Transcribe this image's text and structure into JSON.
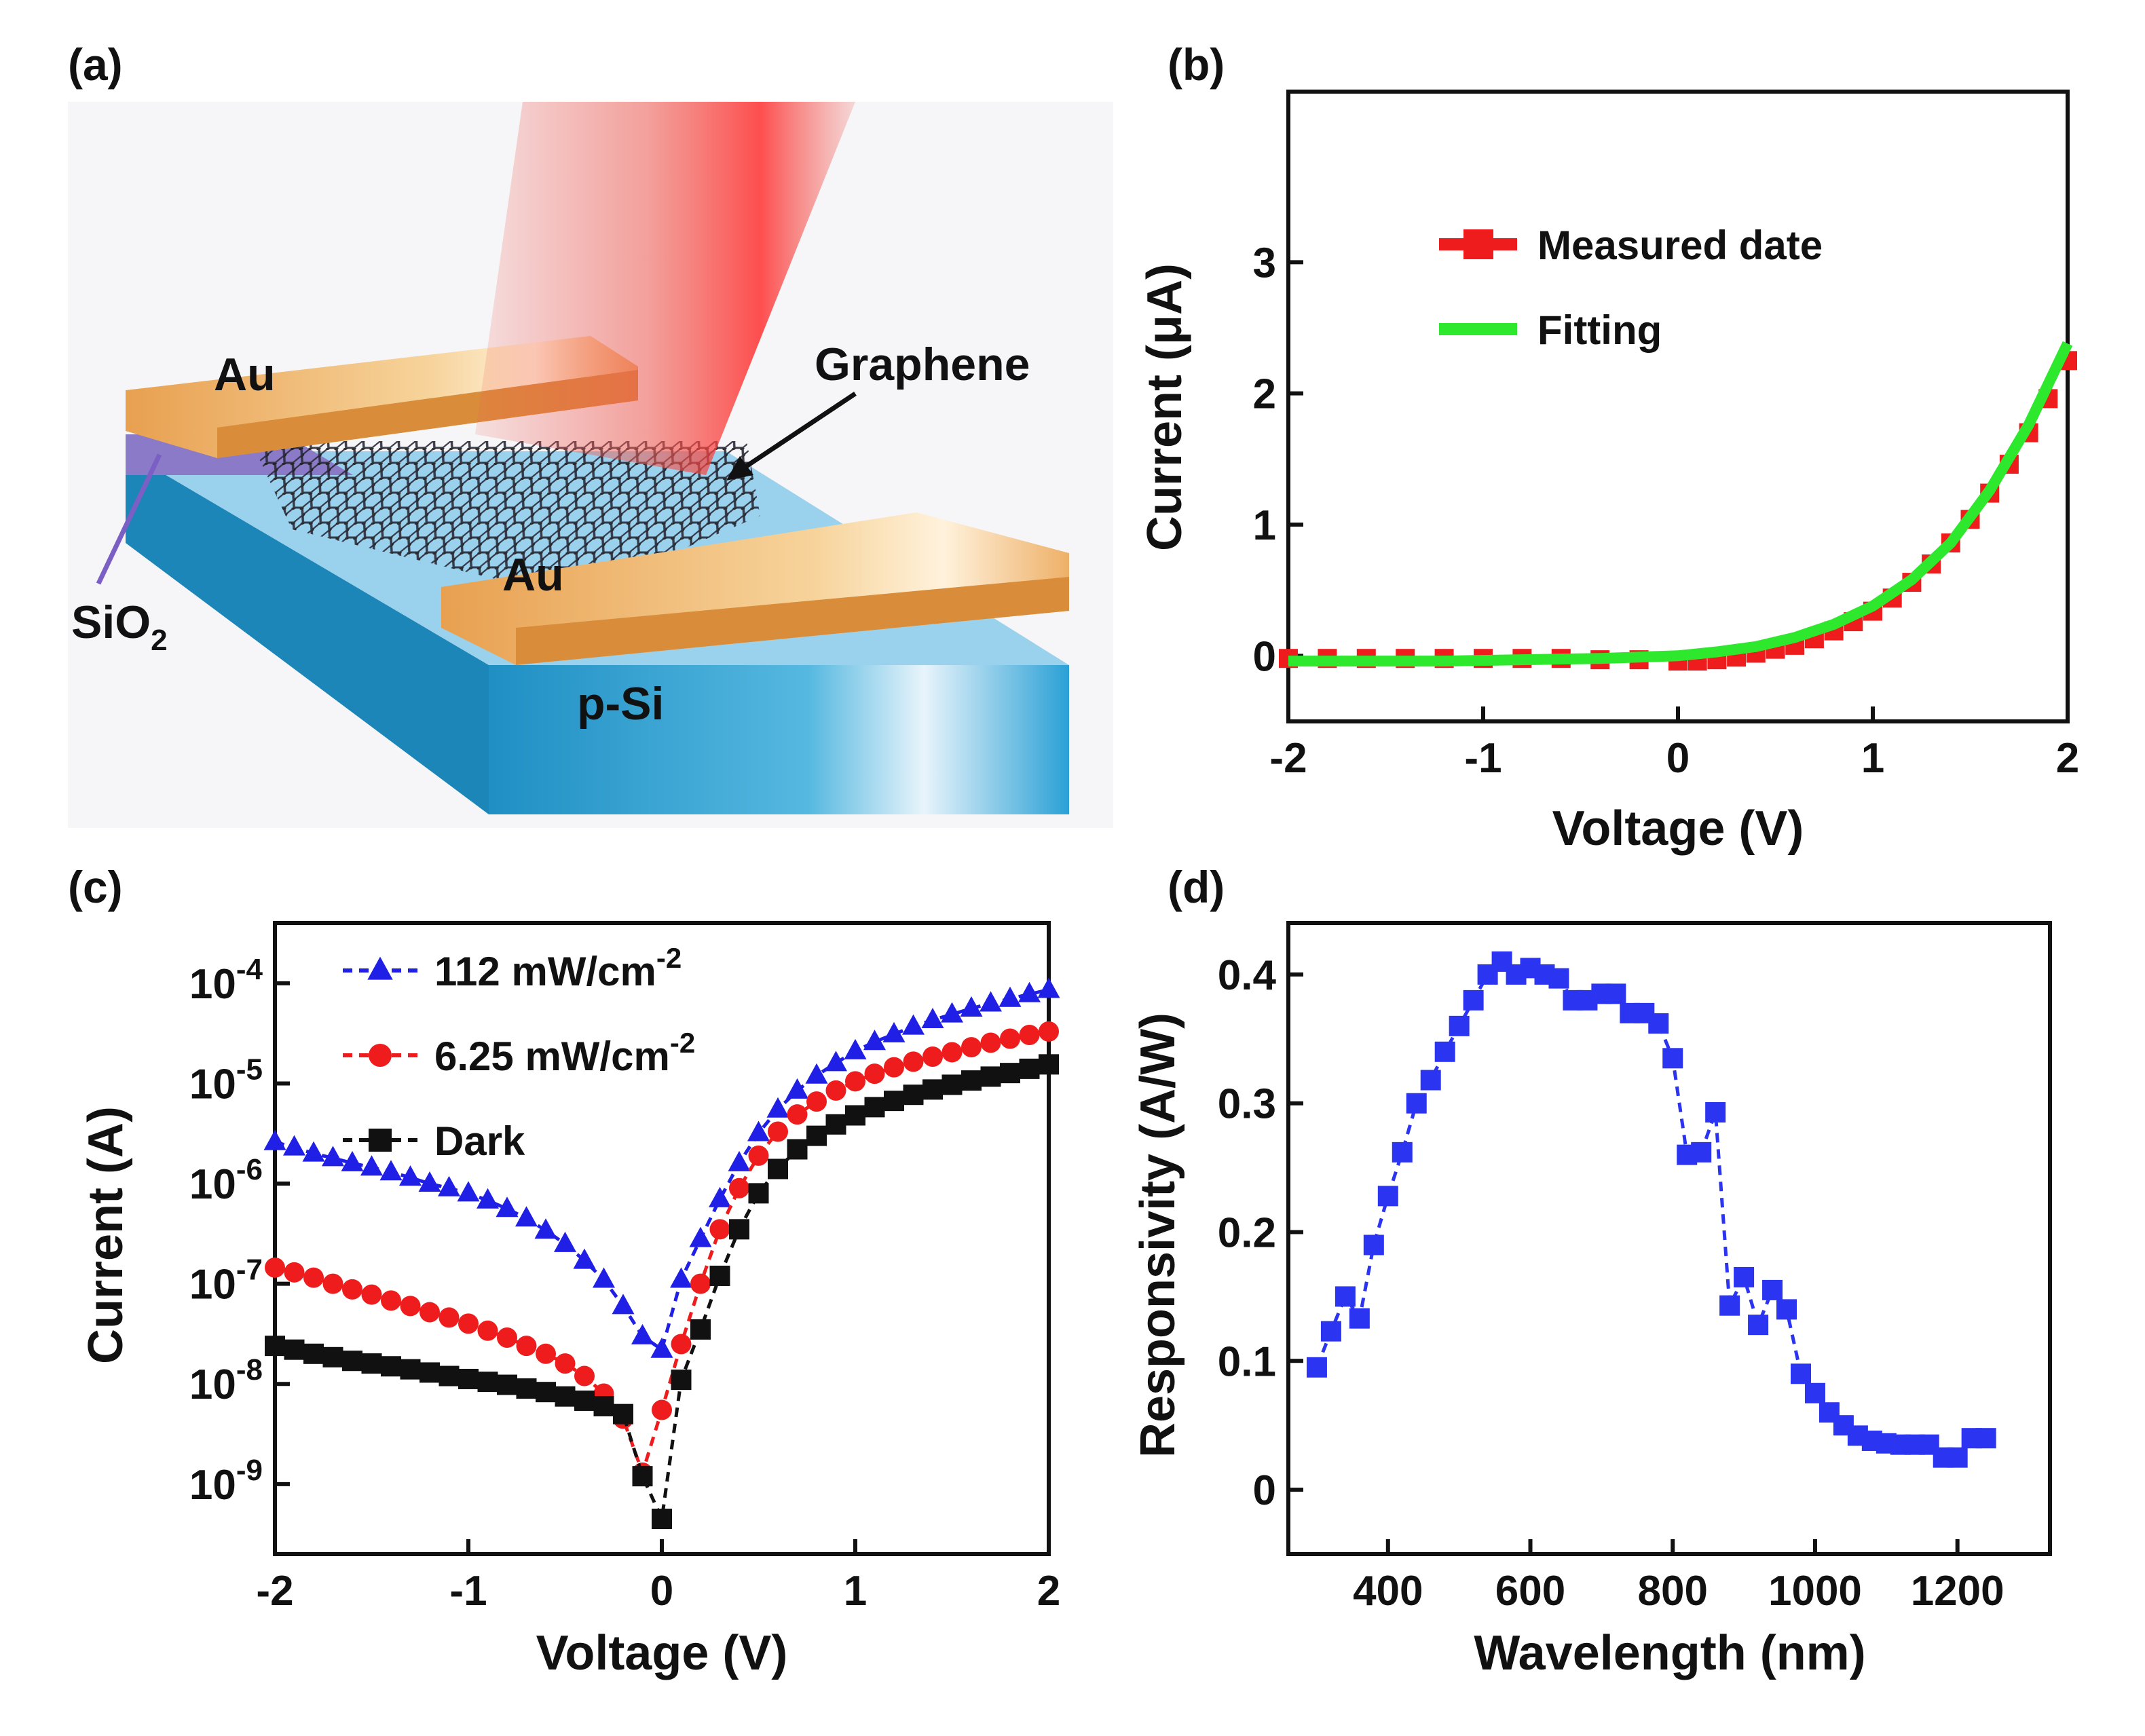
{
  "panels": {
    "a": {
      "label": "(a)",
      "device_labels": [
        "Au",
        "Au",
        "Graphene",
        "SiO",
        "2",
        "p-Si"
      ],
      "colors": {
        "gold": "#f0b467",
        "silicon": "#2aa0d6",
        "oxide": "#8a7ac8",
        "laser": "#f05a50"
      }
    },
    "b": {
      "label": "(b)"
    },
    "c": {
      "label": "(c)"
    },
    "d": {
      "label": "(d)"
    }
  },
  "chart_data": [
    {
      "panel": "b",
      "type": "line",
      "xlabel": "Voltage (V)",
      "ylabel": "Current (μA)",
      "xlim": [
        -2,
        2
      ],
      "ylim": [
        -0.5,
        4.3
      ],
      "xticks": [
        -2,
        -1,
        0,
        1,
        2
      ],
      "xtick_labels": [
        "-2",
        "-1",
        "0",
        "1",
        "2"
      ],
      "yticks": [
        0,
        1,
        2,
        3
      ],
      "ytick_labels": [
        "0",
        "1",
        "2",
        "3"
      ],
      "legend_position": "upper-center",
      "series": [
        {
          "name": "Measured date",
          "color": "#ee1c1c",
          "marker": "square",
          "x": [
            -2.0,
            -1.8,
            -1.6,
            -1.4,
            -1.2,
            -1.0,
            -0.8,
            -0.6,
            -0.4,
            -0.2,
            0.0,
            0.1,
            0.2,
            0.3,
            0.4,
            0.5,
            0.6,
            0.7,
            0.8,
            0.9,
            1.0,
            1.1,
            1.2,
            1.3,
            1.4,
            1.5,
            1.6,
            1.7,
            1.8,
            1.9,
            2.0
          ],
          "y": [
            -0.02,
            -0.02,
            -0.02,
            -0.02,
            -0.02,
            -0.02,
            -0.02,
            -0.02,
            -0.03,
            -0.03,
            -0.04,
            -0.04,
            -0.03,
            -0.01,
            0.02,
            0.05,
            0.08,
            0.13,
            0.19,
            0.26,
            0.34,
            0.44,
            0.56,
            0.7,
            0.86,
            1.04,
            1.24,
            1.46,
            1.7,
            1.96,
            2.25
          ]
        },
        {
          "name": "Fitting",
          "color": "#2ee82e",
          "marker": "none",
          "x": [
            -2.0,
            -1.6,
            -1.2,
            -0.8,
            -0.4,
            0.0,
            0.2,
            0.4,
            0.6,
            0.8,
            1.0,
            1.2,
            1.4,
            1.6,
            1.8,
            2.0
          ],
          "y": [
            -0.04,
            -0.04,
            -0.04,
            -0.03,
            -0.02,
            0.0,
            0.03,
            0.07,
            0.14,
            0.24,
            0.38,
            0.58,
            0.86,
            1.26,
            1.76,
            2.38
          ]
        }
      ]
    },
    {
      "panel": "c",
      "type": "line",
      "y_scale": "log",
      "xlabel": "Voltage (V)",
      "ylabel": "Current (A)",
      "xlim": [
        -2,
        2
      ],
      "ylim": [
        2e-10,
        0.0004
      ],
      "xticks": [
        -2,
        -1,
        0,
        1,
        2
      ],
      "xtick_labels": [
        "-2",
        "-1",
        "0",
        "1",
        "2"
      ],
      "yticks": [
        1e-09,
        1e-08,
        1e-07,
        1e-06,
        1e-05,
        0.0001
      ],
      "ytick_base": "10",
      "ytick_exponents": [
        "-9",
        "-8",
        "-7",
        "-6",
        "-5",
        "-4"
      ],
      "legend_position": "upper-left",
      "series": [
        {
          "name": "112 mW/cm",
          "name_superscript": "-2",
          "color": "#1f1fe6",
          "marker": "triangle",
          "x": [
            -2.0,
            -1.9,
            -1.8,
            -1.7,
            -1.6,
            -1.5,
            -1.4,
            -1.3,
            -1.2,
            -1.1,
            -1.0,
            -0.9,
            -0.8,
            -0.7,
            -0.6,
            -0.5,
            -0.4,
            -0.3,
            -0.2,
            -0.1,
            0.0,
            0.1,
            0.2,
            0.3,
            0.4,
            0.5,
            0.6,
            0.7,
            0.8,
            0.9,
            1.0,
            1.1,
            1.2,
            1.3,
            1.4,
            1.5,
            1.6,
            1.7,
            1.8,
            1.9,
            2.0
          ],
          "y": [
            2.6e-06,
            2.3e-06,
            2e-06,
            1.8e-06,
            1.6e-06,
            1.45e-06,
            1.3e-06,
            1.15e-06,
            1e-06,
            9e-07,
            8e-07,
            6.8e-07,
            5.6e-07,
            4.5e-07,
            3.4e-07,
            2.5e-07,
            1.7e-07,
            1.1e-07,
            6e-08,
            3e-08,
            2.2e-08,
            1.1e-07,
            2.8e-07,
            7e-07,
            1.6e-06,
            3.2e-06,
            5.5e-06,
            8.5e-06,
            1.2e-05,
            1.6e-05,
            2.1e-05,
            2.6e-05,
            3.1e-05,
            3.7e-05,
            4.3e-05,
            4.9e-05,
            5.6e-05,
            6.3e-05,
            7e-05,
            7.8e-05,
            8.6e-05
          ]
        },
        {
          "name": "6.25 mW/cm",
          "name_superscript": "-2",
          "color": "#ee1c1c",
          "marker": "circle",
          "x": [
            -2.0,
            -1.9,
            -1.8,
            -1.7,
            -1.6,
            -1.5,
            -1.4,
            -1.3,
            -1.2,
            -1.1,
            -1.0,
            -0.9,
            -0.8,
            -0.7,
            -0.6,
            -0.5,
            -0.4,
            -0.3,
            -0.2,
            -0.1,
            0.0,
            0.1,
            0.2,
            0.3,
            0.4,
            0.5,
            0.6,
            0.7,
            0.8,
            0.9,
            1.0,
            1.1,
            1.2,
            1.3,
            1.4,
            1.5,
            1.6,
            1.7,
            1.8,
            1.9,
            2.0
          ],
          "y": [
            1.45e-07,
            1.3e-07,
            1.15e-07,
            1e-07,
            8.8e-08,
            7.8e-08,
            6.8e-08,
            6e-08,
            5.2e-08,
            4.6e-08,
            4e-08,
            3.4e-08,
            2.9e-08,
            2.4e-08,
            2e-08,
            1.6e-08,
            1.2e-08,
            8e-09,
            4.5e-09,
            1.3e-09,
            5.5e-09,
            2.5e-08,
            1e-07,
            3.5e-07,
            9e-07,
            1.9e-06,
            3.3e-06,
            4.9e-06,
            6.6e-06,
            8.5e-06,
            1.05e-05,
            1.25e-05,
            1.45e-05,
            1.65e-05,
            1.85e-05,
            2.05e-05,
            2.3e-05,
            2.55e-05,
            2.8e-05,
            3.05e-05,
            3.3e-05
          ]
        },
        {
          "name": "Dark",
          "color": "#111111",
          "marker": "square",
          "x": [
            -2.0,
            -1.9,
            -1.8,
            -1.7,
            -1.6,
            -1.5,
            -1.4,
            -1.3,
            -1.2,
            -1.1,
            -1.0,
            -0.9,
            -0.8,
            -0.7,
            -0.6,
            -0.5,
            -0.4,
            -0.3,
            -0.2,
            -0.1,
            0.0,
            0.1,
            0.2,
            0.3,
            0.4,
            0.5,
            0.6,
            0.7,
            0.8,
            0.9,
            1.0,
            1.1,
            1.2,
            1.3,
            1.4,
            1.5,
            1.6,
            1.7,
            1.8,
            1.9,
            2.0
          ],
          "y": [
            2.4e-08,
            2.2e-08,
            2e-08,
            1.85e-08,
            1.7e-08,
            1.6e-08,
            1.5e-08,
            1.4e-08,
            1.3e-08,
            1.2e-08,
            1.12e-08,
            1.05e-08,
            9.8e-09,
            9e-09,
            8.3e-09,
            7.5e-09,
            6.8e-09,
            6e-09,
            5e-09,
            1.2e-09,
            4.5e-10,
            1.1e-08,
            3.5e-08,
            1.2e-07,
            3.5e-07,
            8e-07,
            1.4e-06,
            2.2e-06,
            3e-06,
            3.9e-06,
            4.8e-06,
            5.8e-06,
            6.7e-06,
            7.7e-06,
            8.7e-06,
            9.7e-06,
            1.07e-05,
            1.17e-05,
            1.27e-05,
            1.4e-05,
            1.55e-05
          ]
        }
      ]
    },
    {
      "panel": "d",
      "type": "line",
      "xlabel": "Wavelength (nm)",
      "ylabel": "Responsivity (A/W)",
      "xlim": [
        260,
        1330
      ],
      "ylim": [
        -0.05,
        0.44
      ],
      "xticks": [
        400,
        600,
        800,
        1000,
        1200
      ],
      "xtick_labels": [
        "400",
        "600",
        "800",
        "1000",
        "1200"
      ],
      "yticks": [
        0,
        0.1,
        0.2,
        0.3,
        0.4
      ],
      "ytick_labels": [
        "0",
        "0.1",
        "0.2",
        "0.3",
        "0.4"
      ],
      "series": [
        {
          "name": "Responsivity",
          "color": "#2b34f0",
          "marker": "square",
          "x": [
            300,
            320,
            340,
            360,
            380,
            400,
            420,
            440,
            460,
            480,
            500,
            520,
            540,
            560,
            580,
            600,
            620,
            640,
            660,
            680,
            700,
            720,
            740,
            760,
            780,
            800,
            820,
            840,
            860,
            880,
            900,
            920,
            940,
            960,
            980,
            1000,
            1020,
            1040,
            1060,
            1080,
            1100,
            1120,
            1140,
            1160,
            1180,
            1200,
            1220,
            1240
          ],
          "y": [
            0.095,
            0.123,
            0.15,
            0.133,
            0.19,
            0.228,
            0.262,
            0.3,
            0.318,
            0.34,
            0.36,
            0.38,
            0.4,
            0.41,
            0.4,
            0.405,
            0.4,
            0.397,
            0.38,
            0.38,
            0.385,
            0.385,
            0.37,
            0.37,
            0.362,
            0.335,
            0.26,
            0.262,
            0.293,
            0.143,
            0.165,
            0.128,
            0.155,
            0.14,
            0.09,
            0.075,
            0.06,
            0.05,
            0.042,
            0.038,
            0.036,
            0.035,
            0.035,
            0.035,
            0.025,
            0.025,
            0.04,
            0.04
          ]
        }
      ]
    }
  ]
}
